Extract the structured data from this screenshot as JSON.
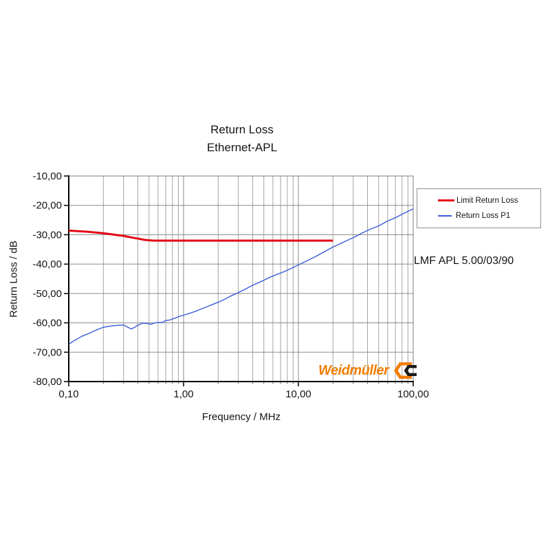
{
  "title": {
    "line1": "Return Loss",
    "line2": "Ethernet-APL"
  },
  "annotation": "LMF APL 5.00/03/90",
  "branding": {
    "name": "Weidmüller",
    "color": "#f07d00",
    "mark_color_secondary": "#1a1a1a"
  },
  "legend": {
    "position": "right-outside",
    "items": [
      {
        "label": "Limit Return Loss"
      },
      {
        "label": "Return Loss P1"
      }
    ]
  },
  "chart_data": {
    "type": "line",
    "title": "Return Loss Ethernet-APL",
    "xlabel": "Frequency / MHz",
    "ylabel": "Return Loss / dB",
    "x_scale": "log",
    "xlim": [
      0.1,
      100
    ],
    "ylim": [
      -80,
      -10
    ],
    "grid": "both-with-log-minors",
    "xticks": {
      "values": [
        0.1,
        1,
        10,
        100
      ],
      "labels": [
        "0,10",
        "1,00",
        "10,00",
        "100,00"
      ]
    },
    "yticks": {
      "values": [
        -10,
        -20,
        -30,
        -40,
        -50,
        -60,
        -70,
        -80
      ],
      "labels": [
        "-10,00",
        "-20,00",
        "-30,00",
        "-40,00",
        "-50,00",
        "-60,00",
        "-70,00",
        "-80,00"
      ]
    },
    "series": [
      {
        "name": "Limit Return Loss",
        "color": "#e30613",
        "line_width": 3,
        "x": [
          0.1,
          0.15,
          0.2,
          0.25,
          0.3,
          0.35,
          0.4,
          0.45,
          0.5,
          0.55,
          20.0
        ],
        "y": [
          -28.6,
          -29.0,
          -29.5,
          -30.0,
          -30.4,
          -30.9,
          -31.3,
          -31.7,
          -31.9,
          -32.0,
          -32.0
        ]
      },
      {
        "name": "Return Loss P1",
        "color": "#3b5bdb",
        "line_width": 1.4,
        "x": [
          0.1,
          0.11,
          0.13,
          0.15,
          0.17,
          0.2,
          0.23,
          0.26,
          0.3,
          0.32,
          0.35,
          0.38,
          0.4,
          0.44,
          0.48,
          0.52,
          0.56,
          0.6,
          0.65,
          0.7,
          0.75,
          0.8,
          0.85,
          0.9,
          1.0,
          1.1,
          1.25,
          1.4,
          1.6,
          1.8,
          2.0,
          2.3,
          2.6,
          3.0,
          3.5,
          4.0,
          4.7,
          5.5,
          6.5,
          7.5,
          8.5,
          10.0,
          12.0,
          14.0,
          17.0,
          20.0,
          25.0,
          30.0,
          36.0,
          43.0,
          50.0,
          60.0,
          70.0,
          85.0,
          100.0
        ],
        "y": [
          -67.3,
          -66.2,
          -64.6,
          -63.6,
          -62.6,
          -61.5,
          -61.1,
          -60.9,
          -60.7,
          -61.3,
          -62.1,
          -61.4,
          -60.8,
          -60.1,
          -60.2,
          -60.5,
          -60.0,
          -59.9,
          -59.9,
          -59.2,
          -59.1,
          -58.7,
          -58.4,
          -57.9,
          -57.4,
          -56.9,
          -56.2,
          -55.4,
          -54.5,
          -53.7,
          -53.0,
          -51.9,
          -50.8,
          -49.7,
          -48.4,
          -47.2,
          -46.0,
          -44.7,
          -43.5,
          -42.6,
          -41.6,
          -40.3,
          -38.8,
          -37.5,
          -35.7,
          -34.2,
          -32.4,
          -31.0,
          -29.4,
          -28.0,
          -27.0,
          -25.3,
          -24.2,
          -22.5,
          -21.2
        ]
      }
    ]
  }
}
